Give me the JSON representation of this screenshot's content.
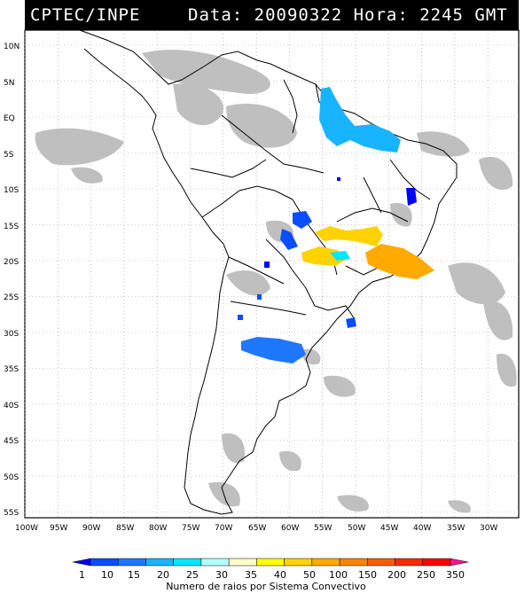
{
  "header": {
    "source": "CPTEC/INPE",
    "datetime": "Data: 20090322 Hora: 2245 GMT"
  },
  "lat_labels": [
    "10N",
    "5N",
    "EQ",
    "5S",
    "10S",
    "15S",
    "20S",
    "25S",
    "30S",
    "35S",
    "40S",
    "45S",
    "50S",
    "55S"
  ],
  "lon_labels": [
    "100W",
    "95W",
    "90W",
    "85W",
    "80W",
    "75W",
    "70W",
    "65W",
    "60W",
    "55W",
    "50W",
    "45W",
    "40W",
    "35W",
    "30W"
  ],
  "colorbar": {
    "ticks": [
      "1",
      "10",
      "15",
      "20",
      "25",
      "30",
      "35",
      "40",
      "50",
      "100",
      "150",
      "200",
      "250",
      "350"
    ],
    "colors": [
      "#0000ff",
      "#0a4cff",
      "#1e78ff",
      "#18b4ff",
      "#00e6ff",
      "#b4ffff",
      "#ffffc8",
      "#ffff00",
      "#ffd200",
      "#ffaa00",
      "#ff8200",
      "#ff5a00",
      "#ff2800",
      "#ff0000",
      "#ff1493"
    ],
    "title": "Numero de raios por Sistema Convectivo"
  }
}
